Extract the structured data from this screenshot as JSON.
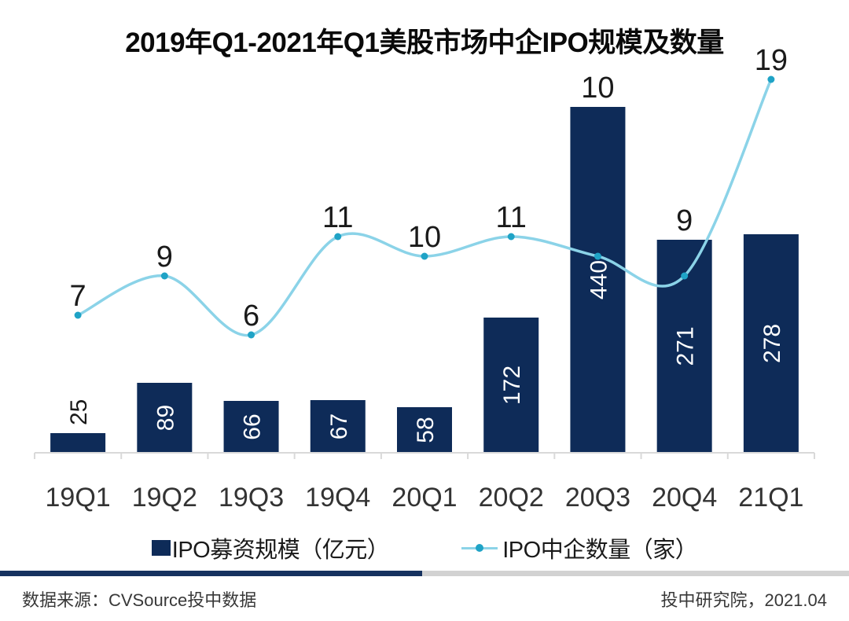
{
  "title": "2019年Q1-2021年Q1美股市场中企IPO规模及数量",
  "chart_data": {
    "type": "bar",
    "subtype": "combo-bar-line-dual-axis",
    "categories": [
      "19Q1",
      "19Q2",
      "19Q3",
      "19Q4",
      "20Q1",
      "20Q2",
      "20Q3",
      "20Q4",
      "21Q1"
    ],
    "series": [
      {
        "name": "IPO募资规模（亿元）",
        "type": "bar",
        "axis": "primary",
        "values": [
          25,
          89,
          66,
          67,
          58,
          172,
          440,
          271,
          278
        ]
      },
      {
        "name": "IPO中企数量（家）",
        "type": "line",
        "axis": "secondary",
        "values": [
          7,
          9,
          6,
          11,
          10,
          11,
          10,
          9,
          19
        ]
      }
    ],
    "title": "2019年Q1-2021年Q1美股市场中企IPO规模及数量",
    "xlabel": "",
    "ylabel": "",
    "primary_ylim": [
      0,
      500
    ],
    "secondary_ylim": [
      0,
      20
    ],
    "grid": false,
    "axes_labels_visible": false,
    "legend_position": "bottom",
    "data_labels": "all"
  },
  "colors": {
    "bar": "#0E2B58",
    "line": "#8BD3E8",
    "marker": "#1FA3C6",
    "axis_line": "#D9D9D9",
    "bar_label_inside": "#FFFFFF",
    "bar_label_outside": "#1a1a1a",
    "line_label": "#1a1a1a",
    "axis_label": "#333333",
    "divider_navy": "#16325F",
    "divider_gray": "#D2D2D2"
  },
  "footer": {
    "source": "数据来源：CVSource投中数据",
    "credit": "投中研究院，2021.04"
  }
}
